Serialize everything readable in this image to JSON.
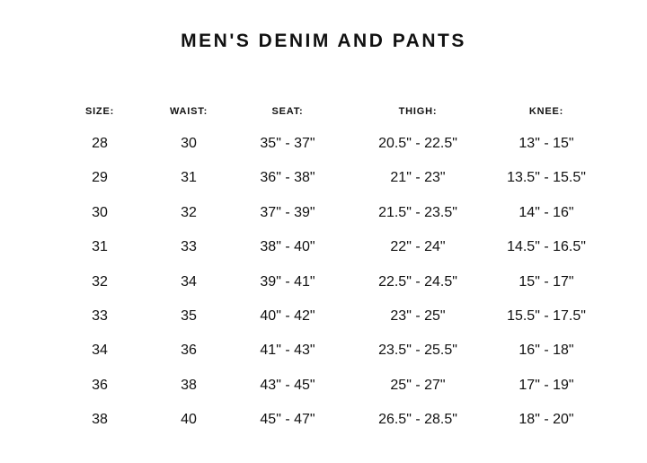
{
  "title": "MEN'S DENIM AND PANTS",
  "headers": [
    "SIZE:",
    "WAIST:",
    "SEAT:",
    "THIGH:",
    "KNEE:"
  ],
  "rows": [
    [
      "28",
      "30",
      "35\" - 37\"",
      "20.5\" - 22.5\"",
      "13\" - 15\""
    ],
    [
      "29",
      "31",
      "36\" - 38\"",
      "21\" - 23\"",
      "13.5\" - 15.5\""
    ],
    [
      "30",
      "32",
      "37\" - 39\"",
      "21.5\" - 23.5\"",
      "14\" - 16\""
    ],
    [
      "31",
      "33",
      "38\" - 40\"",
      "22\" - 24\"",
      "14.5\" - 16.5\""
    ],
    [
      "32",
      "34",
      "39\" - 41\"",
      "22.5\" - 24.5\"",
      "15\" - 17\""
    ],
    [
      "33",
      "35",
      "40\" - 42\"",
      "23\" - 25\"",
      "15.5\" - 17.5\""
    ],
    [
      "34",
      "36",
      "41\" - 43\"",
      "23.5\" - 25.5\"",
      "16\" - 18\""
    ],
    [
      "36",
      "38",
      "43\" - 45\"",
      "25\" - 27\"",
      "17\" - 19\""
    ],
    [
      "38",
      "40",
      "45\" - 47\"",
      "26.5\" - 28.5\"",
      "18\" - 20\""
    ]
  ]
}
